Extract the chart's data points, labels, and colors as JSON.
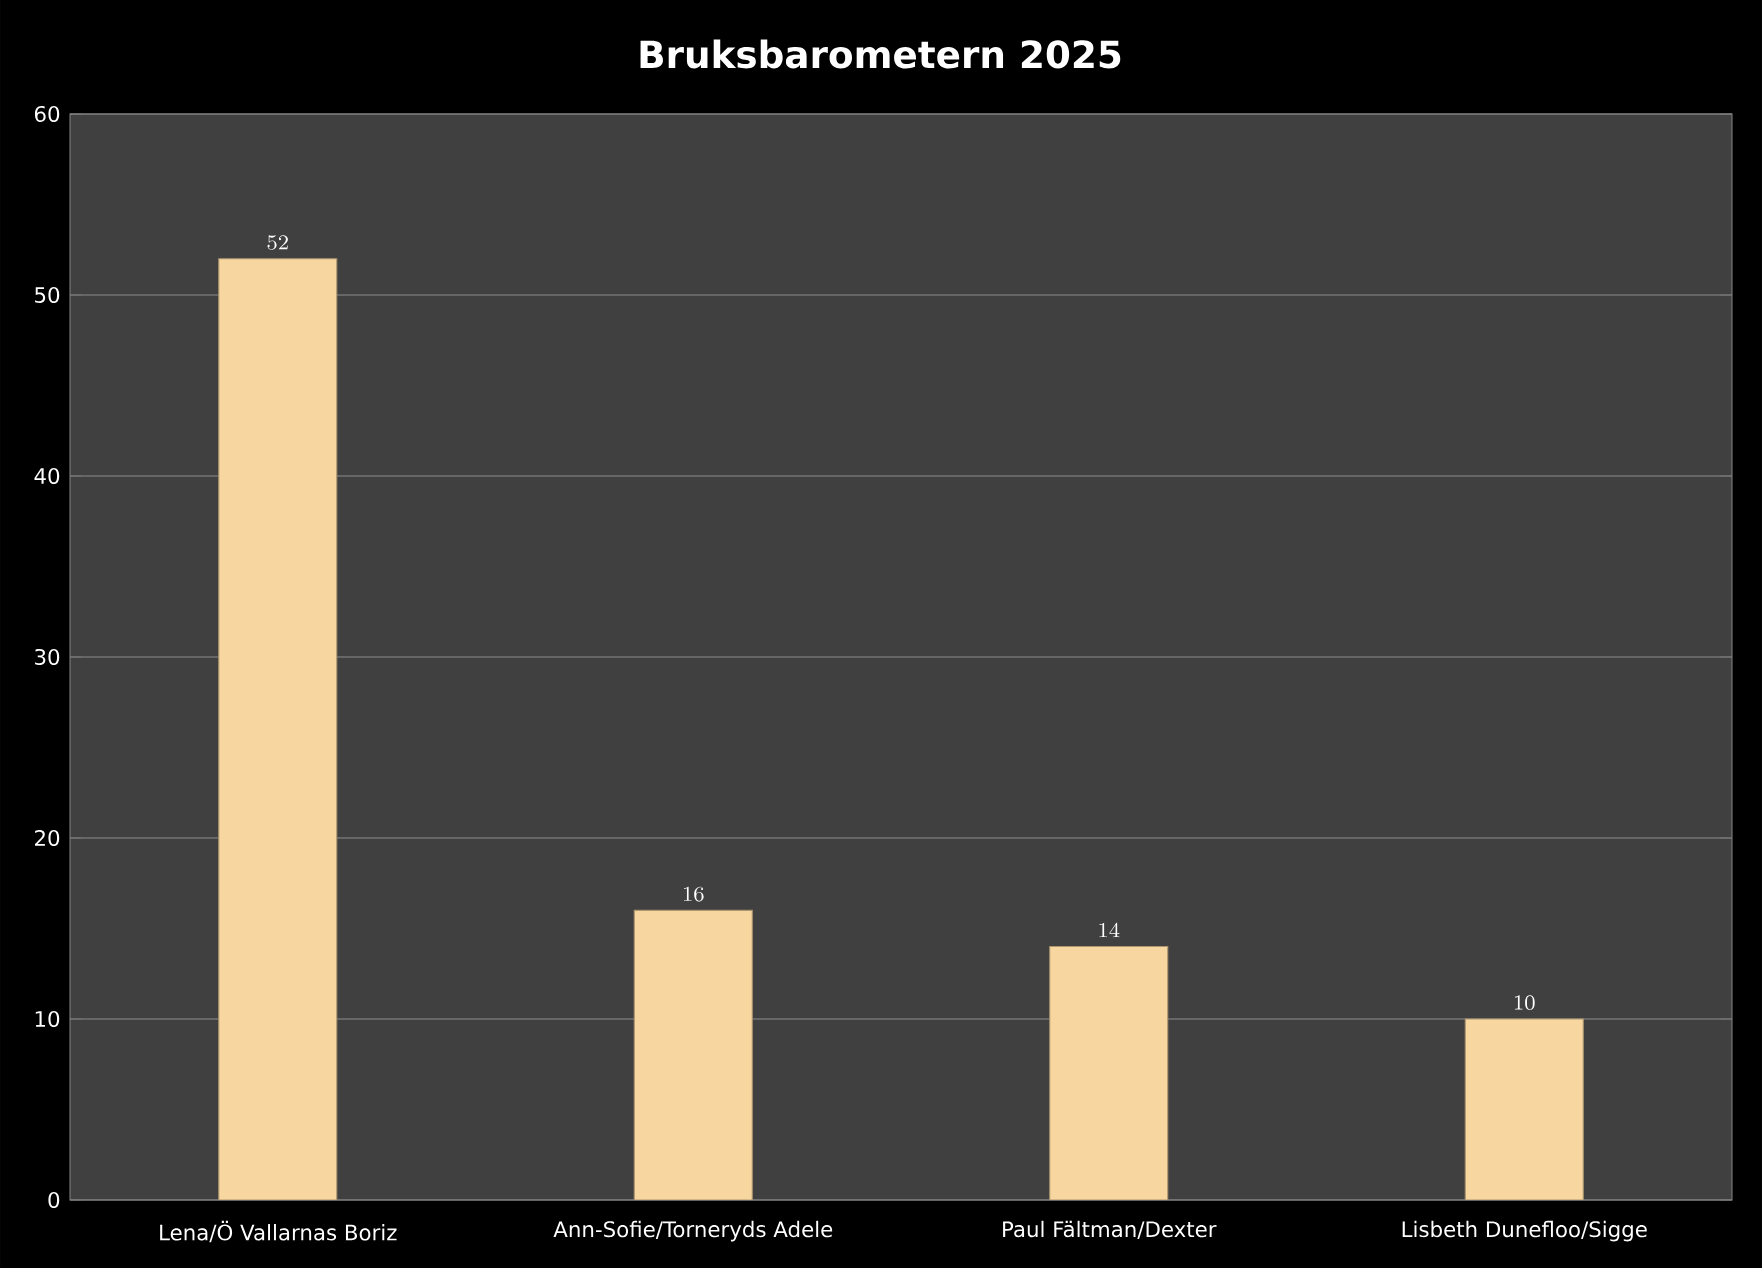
{
  "chart_data": {
    "type": "bar",
    "title": "Bruksbarometern 2025",
    "categories": [
      "Lena/Ö Vallarnas Boriz",
      "Ann-Sofie/Torneryds Adele",
      "Paul Fältman/Dexter",
      "Lisbeth Dunefloo/Sigge"
    ],
    "values": [
      52,
      16,
      14,
      10
    ],
    "color": "#f7d6a0",
    "ylim": [
      0,
      60
    ],
    "yticks": [
      0,
      10,
      20,
      30,
      40,
      50,
      60
    ],
    "grid": "y",
    "data_labels": true
  }
}
